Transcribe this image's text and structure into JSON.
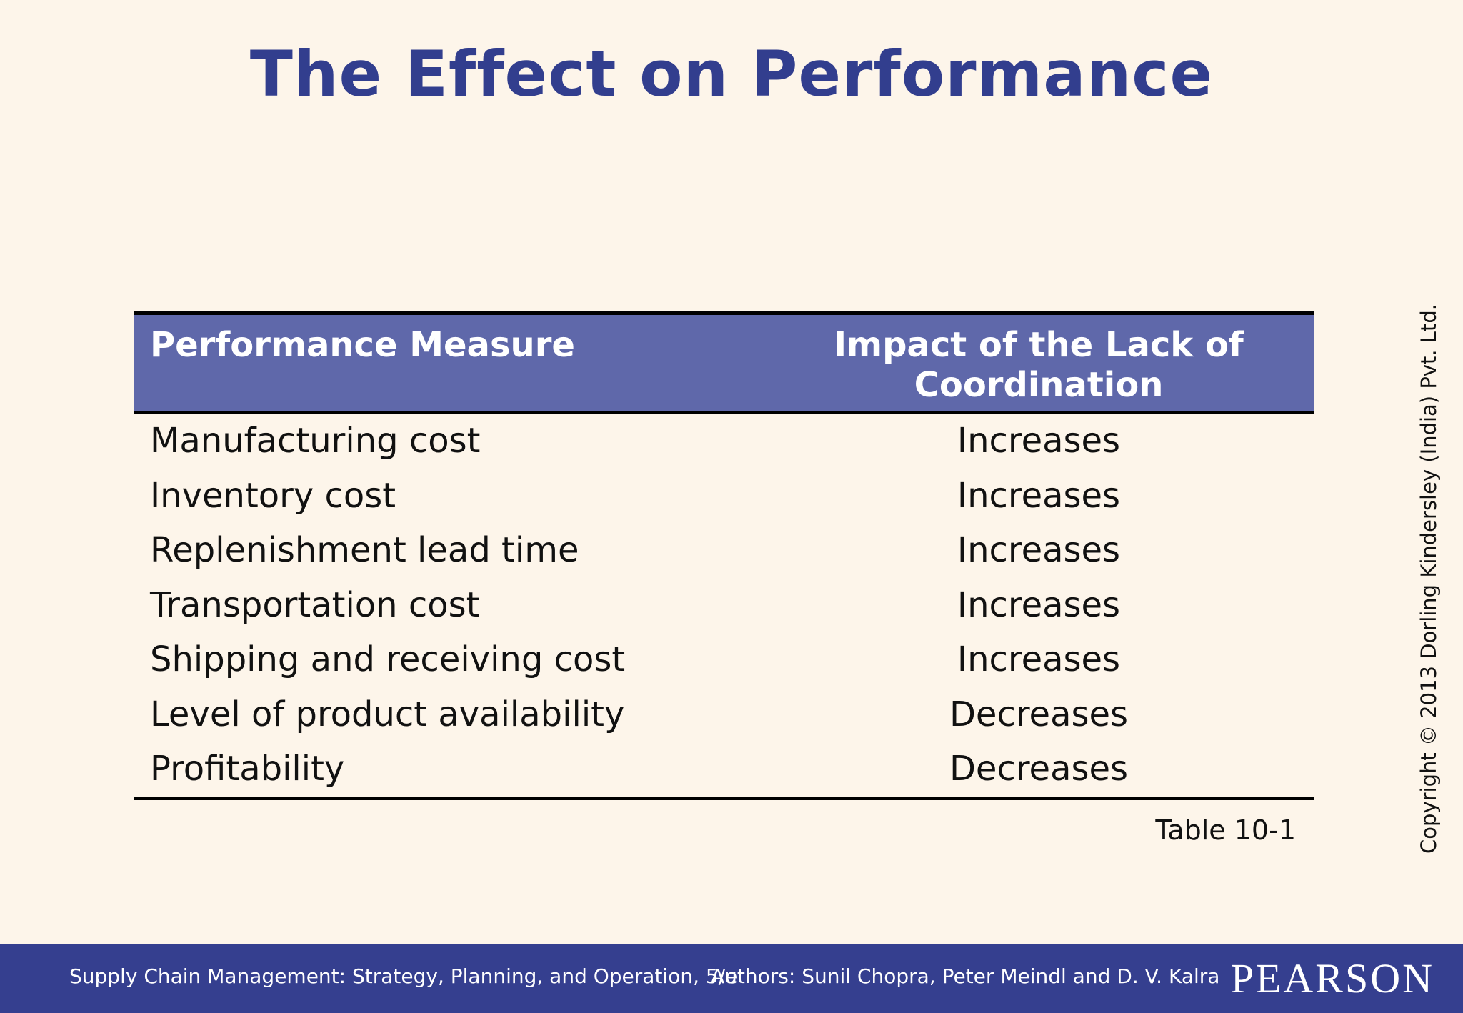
{
  "slide": {
    "title": "The Effect on Performance",
    "table": {
      "headers": [
        "Performance Measure",
        "Impact of the Lack of Coordination"
      ],
      "rows": [
        {
          "measure": "Manufacturing cost",
          "impact": "Increases"
        },
        {
          "measure": "Inventory cost",
          "impact": "Increases"
        },
        {
          "measure": "Replenishment lead time",
          "impact": "Increases"
        },
        {
          "measure": "Transportation cost",
          "impact": "Increases"
        },
        {
          "measure": "Shipping and receiving cost",
          "impact": "Increases"
        },
        {
          "measure": "Level of product availability",
          "impact": "Decreases"
        },
        {
          "measure": "Profitability",
          "impact": "Decreases"
        }
      ]
    },
    "caption": "Table 10-1",
    "copyright": "Copyright © 2013 Dorling Kindersley (India) Pvt. Ltd."
  },
  "footer": {
    "book": "Supply Chain Management: Strategy, Planning, and Operation, 5/e",
    "authors": "Authors: Sunil Chopra, Peter Meindl and D. V. Kalra",
    "logo": "PEARSON"
  },
  "colors": {
    "background": "#fdf5ea",
    "title": "#323e8e",
    "header_fill": "#5f68aa",
    "footer_bar": "#353f8f"
  }
}
